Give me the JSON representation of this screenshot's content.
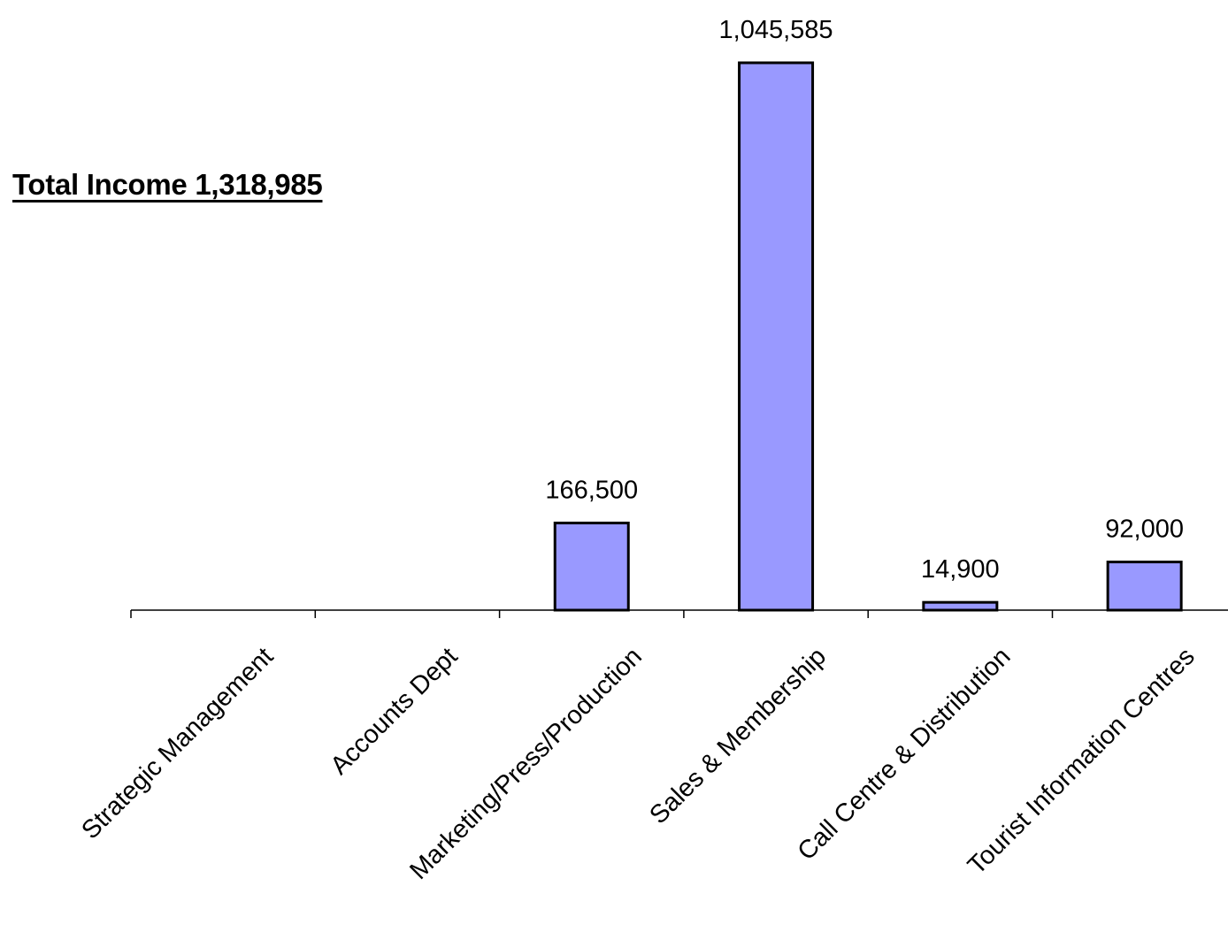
{
  "chart_data": {
    "type": "bar",
    "title": "Total Income 1,318,985",
    "xlabel": "",
    "ylabel": "",
    "categories": [
      "Strategic Management",
      "Accounts Dept",
      "Marketing/Press/Production",
      "Sales & Membership",
      "Call Centre & Distribution",
      "Tourist Information Centres"
    ],
    "values": [
      0,
      0,
      166500,
      1045585,
      14900,
      92000
    ],
    "data_labels": [
      "",
      "",
      "166,500",
      "1,045,585",
      "14,900",
      "92,000"
    ],
    "ylim": [
      0,
      1045585
    ],
    "grid": false,
    "legend": "none",
    "bar_color": "#9999FF",
    "edge_color": "#000000"
  }
}
